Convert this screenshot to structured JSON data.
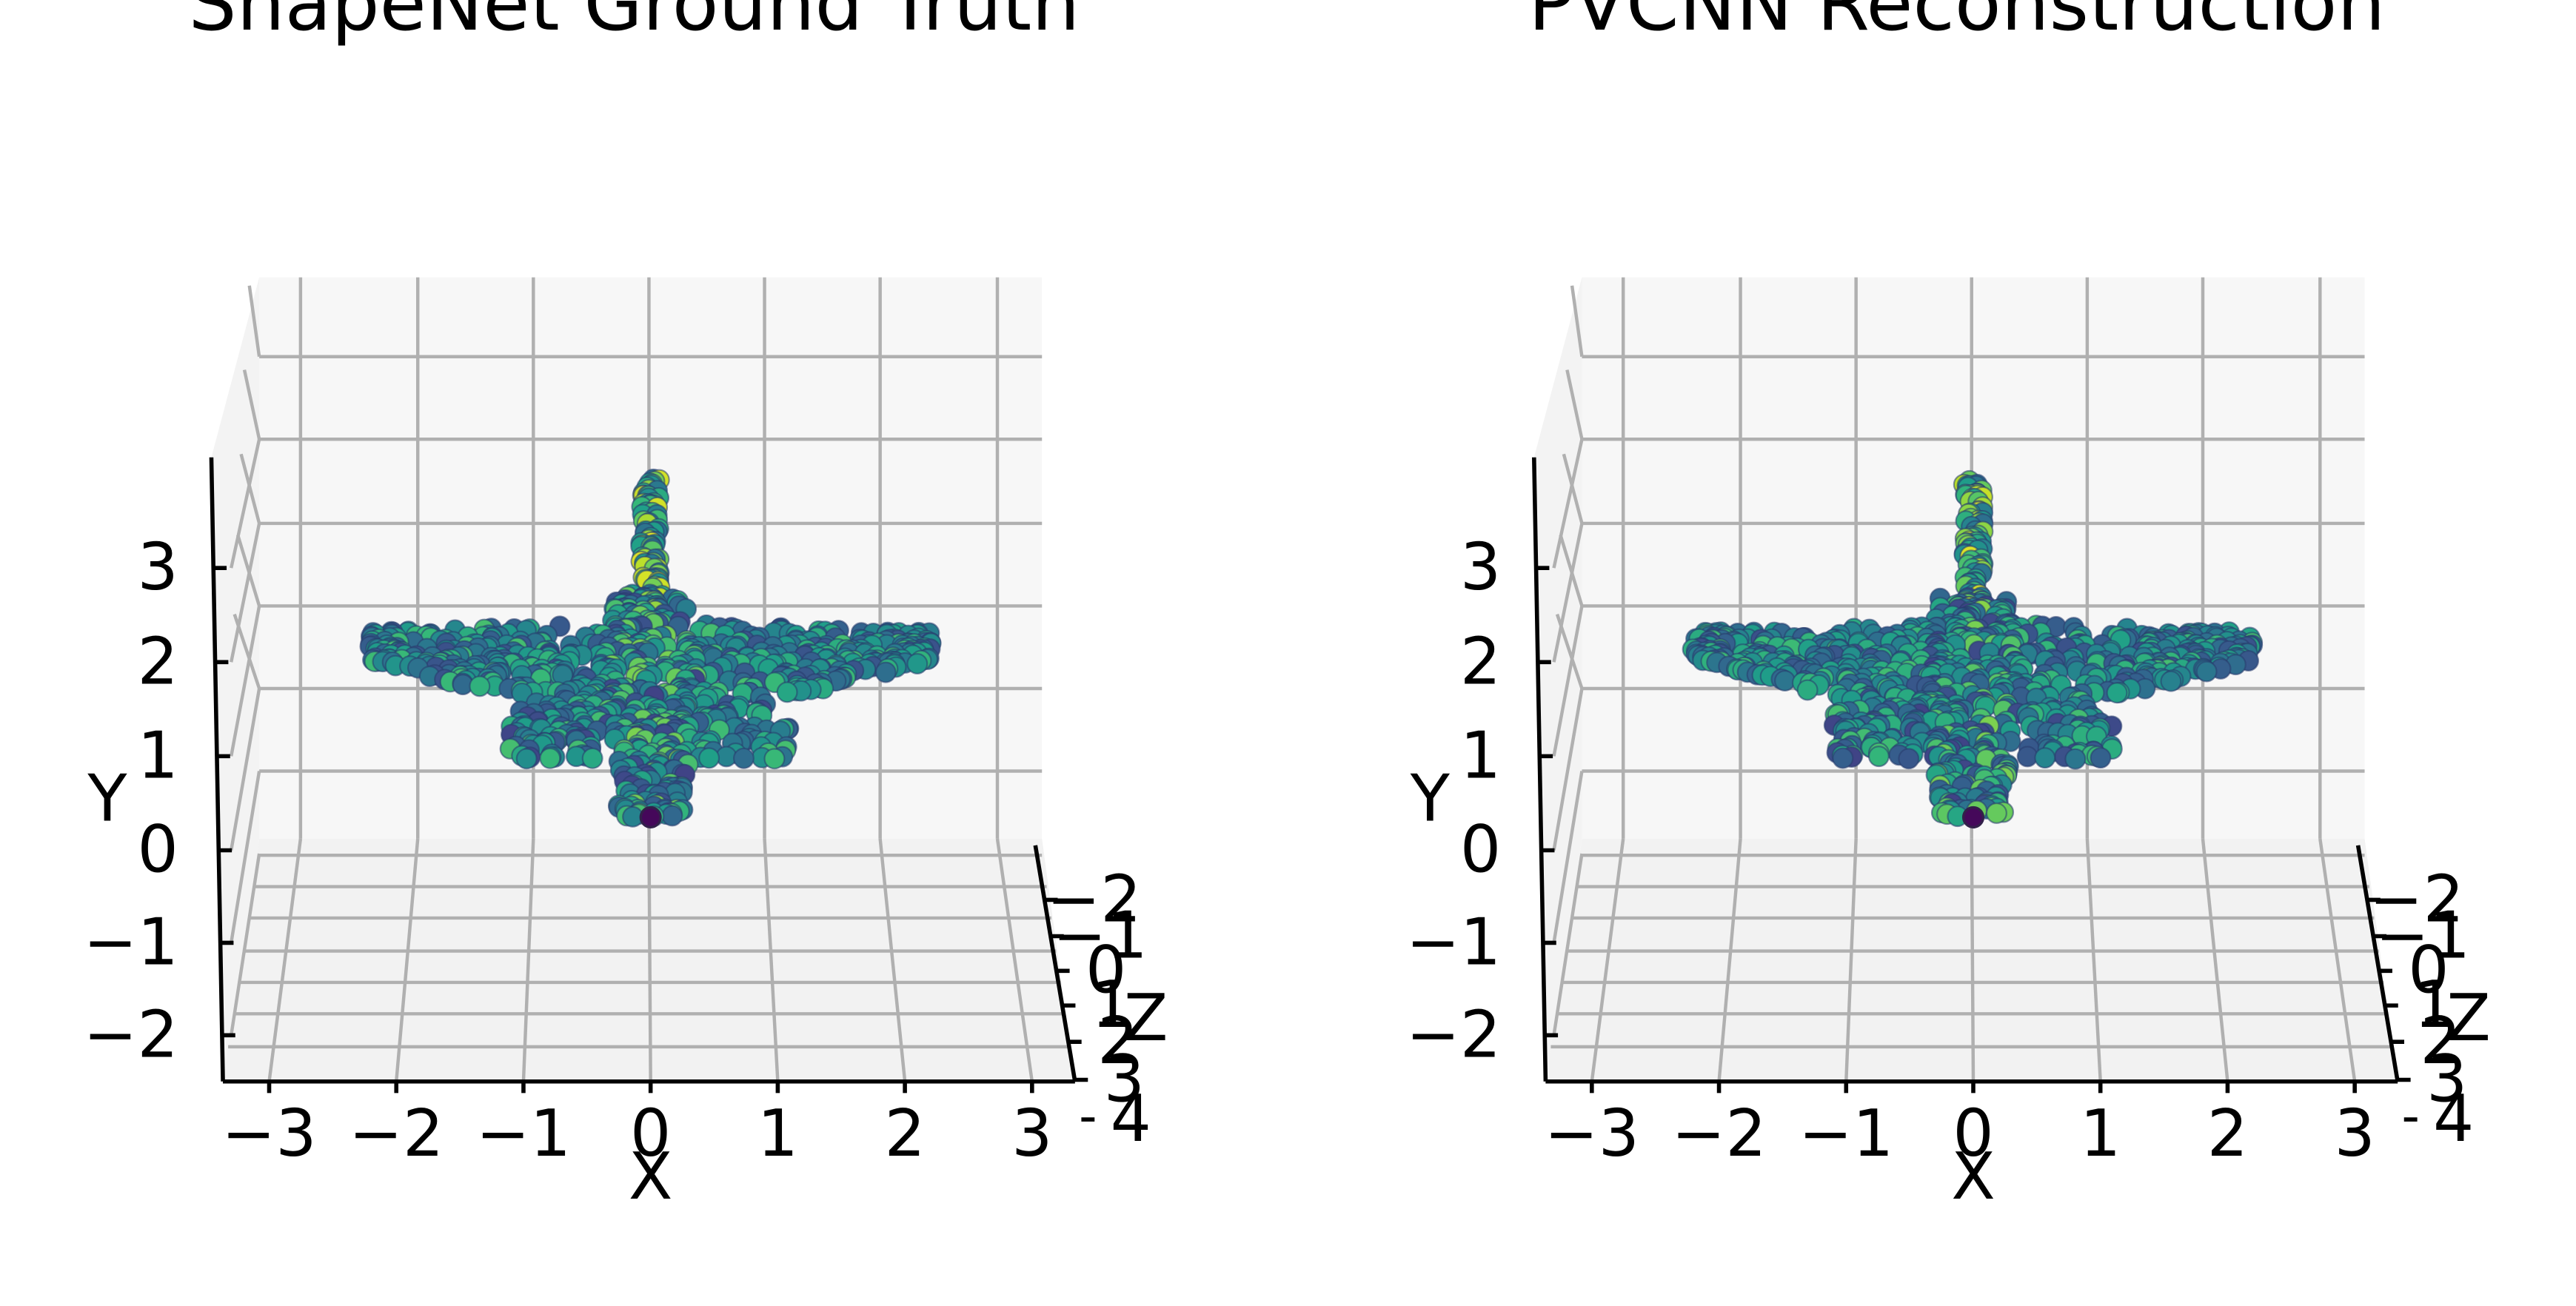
{
  "chart_data": [
    {
      "type": "scatter",
      "projection": "3d",
      "title": "ShapeNet Ground Truth",
      "xlabel": "X",
      "ylabel": "Y",
      "zlabel": "Z",
      "x_ticks": [
        "−3",
        "−2",
        "−1",
        "0",
        "1",
        "2",
        "3"
      ],
      "y_ticks": [
        "−2",
        "−1",
        "0",
        "1",
        "2",
        "3"
      ],
      "z_ticks": [
        "−2",
        "−1",
        "0",
        "1",
        "2",
        "3",
        "4"
      ],
      "xlim": [
        -3.4,
        3.4
      ],
      "ylim": [
        -2.4,
        4.0
      ],
      "zlim": [
        -2.5,
        4.0
      ],
      "grid": true,
      "colormap": "viridis",
      "point_cloud": "airplane",
      "seed": 11
    },
    {
      "type": "scatter",
      "projection": "3d",
      "title": "PVCNN Reconstruction",
      "xlabel": "X",
      "ylabel": "Y",
      "zlabel": "Z",
      "x_ticks": [
        "−3",
        "−2",
        "−1",
        "0",
        "1",
        "2",
        "3"
      ],
      "y_ticks": [
        "−2",
        "−1",
        "0",
        "1",
        "2",
        "3"
      ],
      "z_ticks": [
        "−2",
        "−1",
        "0",
        "1",
        "2",
        "3",
        "4"
      ],
      "xlim": [
        -3.4,
        3.4
      ],
      "ylim": [
        -2.4,
        4.0
      ],
      "zlim": [
        -2.5,
        4.0
      ],
      "grid": true,
      "colormap": "viridis",
      "point_cloud": "airplane",
      "seed": 29
    }
  ],
  "colors": {
    "pane_back": "#f7f7f7",
    "pane_floor": "#f2f2f2",
    "pane_side": "#f3f3f3",
    "grid": "#b0b0b0",
    "axis": "#000000"
  }
}
